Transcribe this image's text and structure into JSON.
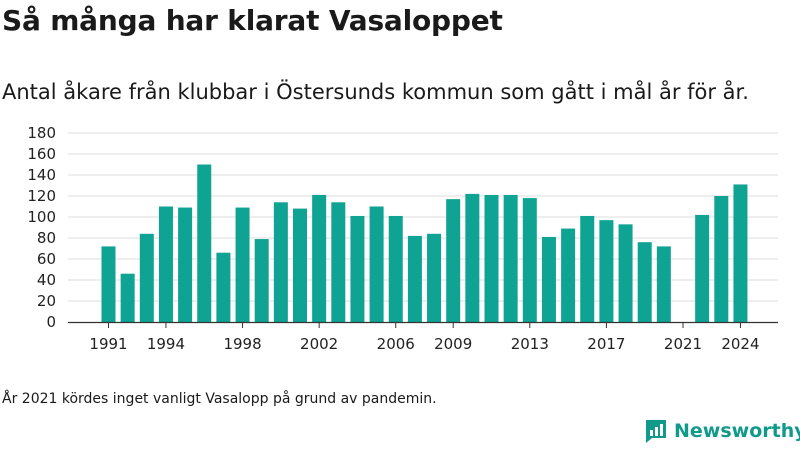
{
  "title": "Så många har klarat Vasaloppet",
  "subtitle": "Antal åkare från klubbar i Östersunds kommun som gått i mål år för år.",
  "note": "År 2021 kördes inget vanligt Vasalopp på grund av pandemin.",
  "brand": {
    "name": "Newsworthy",
    "icon": "newsworthy-logo-icon"
  },
  "colors": {
    "bar": "#0fa394",
    "grid": "#dddddd",
    "axis": "#333333",
    "brand": "#119a8c"
  },
  "chart_data": {
    "type": "bar",
    "x": [
      1991,
      1992,
      1993,
      1994,
      1995,
      1996,
      1997,
      1998,
      1999,
      2000,
      2001,
      2002,
      2003,
      2004,
      2005,
      2006,
      2007,
      2008,
      2009,
      2010,
      2011,
      2012,
      2013,
      2014,
      2015,
      2016,
      2017,
      2018,
      2019,
      2020,
      2021,
      2022,
      2023,
      2024
    ],
    "values": [
      72,
      46,
      84,
      110,
      109,
      150,
      66,
      109,
      79,
      114,
      108,
      121,
      114,
      101,
      110,
      101,
      82,
      84,
      117,
      122,
      121,
      121,
      118,
      81,
      89,
      101,
      97,
      93,
      76,
      72,
      null,
      102,
      120,
      131
    ],
    "x_tick_labels": [
      "1991",
      "1994",
      "1998",
      "2002",
      "2006",
      "2009",
      "2013",
      "2017",
      "2021",
      "2024"
    ],
    "y_ticks": [
      0,
      20,
      40,
      60,
      80,
      100,
      120,
      140,
      160,
      180
    ],
    "ylim": [
      0,
      180
    ],
    "grid": true,
    "legend": "none"
  }
}
